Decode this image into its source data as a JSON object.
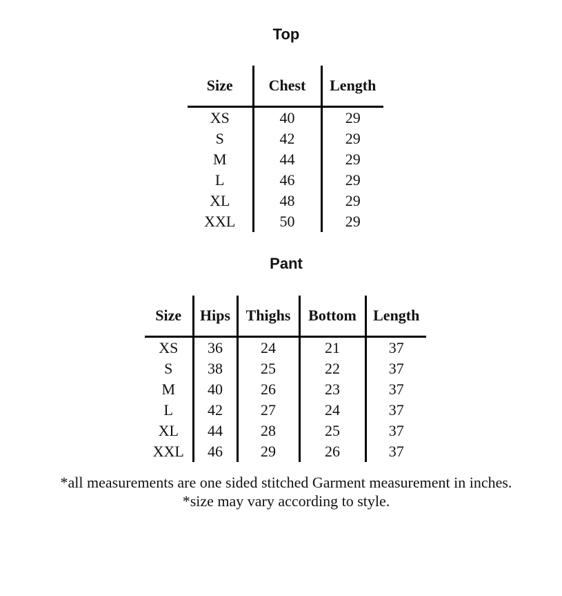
{
  "top": {
    "title": "Top",
    "headers": [
      "Size",
      "Chest",
      "Length"
    ],
    "rows": [
      [
        "XS",
        "40",
        "29"
      ],
      [
        "S",
        "42",
        "29"
      ],
      [
        "M",
        "44",
        "29"
      ],
      [
        "L",
        "46",
        "29"
      ],
      [
        "XL",
        "48",
        "29"
      ],
      [
        "XXL",
        "50",
        "29"
      ]
    ]
  },
  "pant": {
    "title": "Pant",
    "headers": [
      "Size",
      "Hips",
      "Thighs",
      "Bottom",
      "Length"
    ],
    "rows": [
      [
        "XS",
        "36",
        "24",
        "21",
        "37"
      ],
      [
        "S",
        "38",
        "25",
        "22",
        "37"
      ],
      [
        "M",
        "40",
        "26",
        "23",
        "37"
      ],
      [
        "L",
        "42",
        "27",
        "24",
        "37"
      ],
      [
        "XL",
        "44",
        "28",
        "25",
        "37"
      ],
      [
        "XXL",
        "46",
        "29",
        "26",
        "37"
      ]
    ]
  },
  "notes": [
    "*all measurements are one sided stitched Garment measurement in inches.",
    "*size may vary according to style."
  ]
}
